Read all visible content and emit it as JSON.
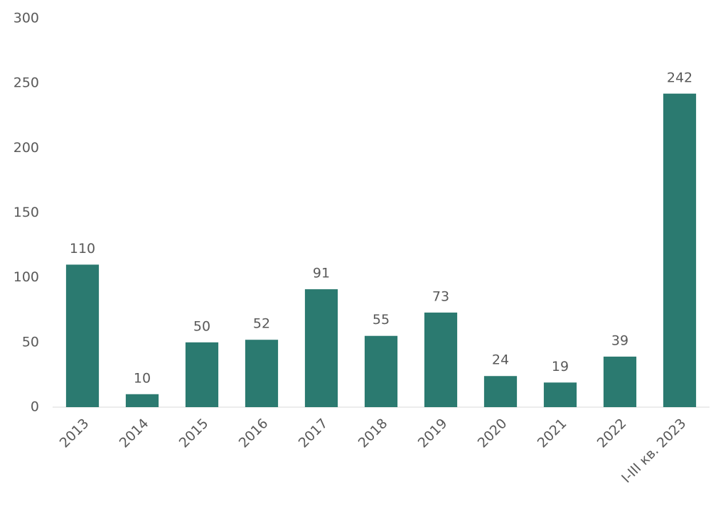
{
  "chart_data": {
    "type": "bar",
    "categories": [
      "2013",
      "2014",
      "2015",
      "2016",
      "2017",
      "2018",
      "2019",
      "2020",
      "2021",
      "2022",
      "I-III кв. 2023"
    ],
    "values": [
      110,
      10,
      50,
      52,
      91,
      55,
      73,
      24,
      19,
      39,
      242
    ],
    "color": "#2b7a70",
    "ylim": [
      0,
      300
    ],
    "yticks": [
      0,
      50,
      100,
      150,
      200,
      250,
      300
    ],
    "grid": false
  }
}
